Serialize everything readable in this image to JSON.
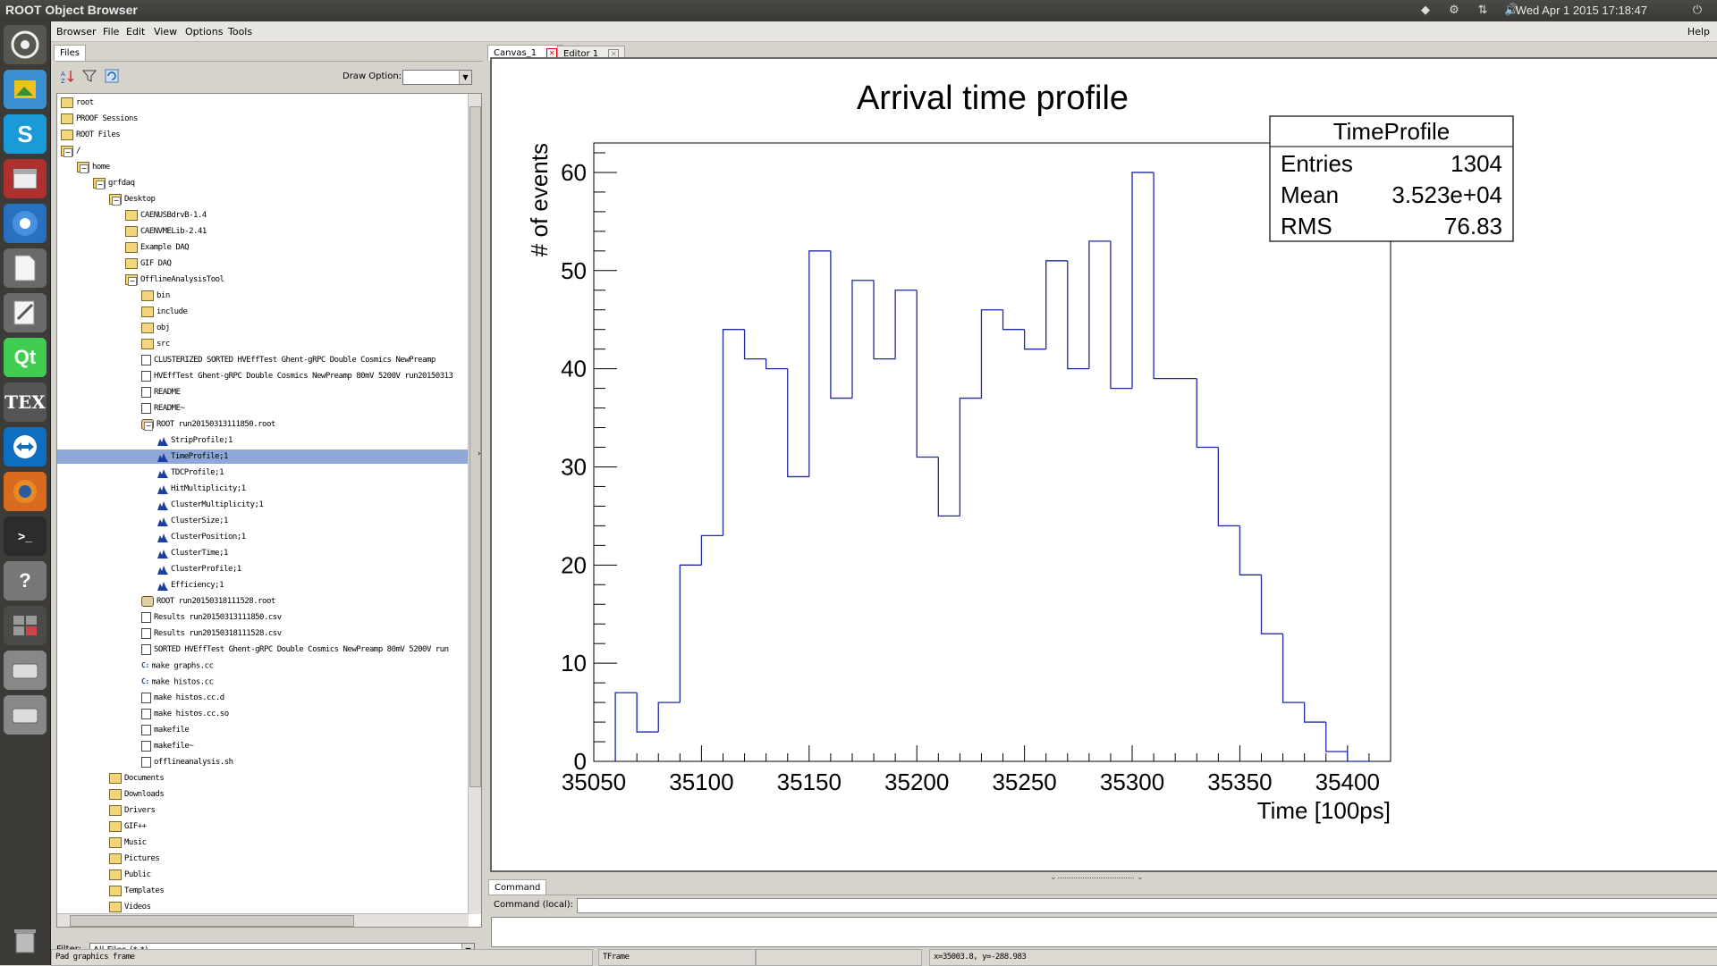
{
  "topbar": {
    "title": "ROOT Object Browser",
    "clock": "Wed Apr  1 2015 17:18:47"
  },
  "launcher": {
    "items": [
      "dash",
      "image-viewer",
      "skype",
      "archive",
      "chromium",
      "document",
      "text-editor",
      "qt-creator",
      "tex",
      "teamviewer",
      "firefox",
      "terminal",
      "help",
      "workspaces",
      "drive",
      "drive",
      "trash"
    ]
  },
  "menubar": {
    "items": [
      "Browser",
      "File",
      "Edit",
      "View",
      "Options",
      "Tools"
    ],
    "help": "Help"
  },
  "left": {
    "tab": "Files",
    "draw_option_label": "Draw Option:",
    "draw_option_value": "",
    "filter_label": "Filter:",
    "filter_value": "All Files (*.*)",
    "tree": [
      {
        "label": "root",
        "type": "folder",
        "depth": 0
      },
      {
        "label": "PROOF Sessions",
        "type": "folder",
        "depth": 0
      },
      {
        "label": "ROOT Files",
        "type": "folder",
        "depth": 0
      },
      {
        "label": "/",
        "type": "folder",
        "depth": 0
      },
      {
        "label": "home",
        "type": "folder",
        "depth": 1
      },
      {
        "label": "grfdaq",
        "type": "folder",
        "depth": 2
      },
      {
        "label": "Desktop",
        "type": "folder",
        "depth": 3
      },
      {
        "label": "CAENUSBdrvB-1.4",
        "type": "folder",
        "depth": 4
      },
      {
        "label": "CAENVMELib-2.41",
        "type": "folder",
        "depth": 4
      },
      {
        "label": "Example DAQ",
        "type": "folder",
        "depth": 4
      },
      {
        "label": "GIF DAQ",
        "type": "folder",
        "depth": 4
      },
      {
        "label": "OfflineAnalysisTool",
        "type": "folder",
        "depth": 4
      },
      {
        "label": "bin",
        "type": "folder",
        "depth": 5
      },
      {
        "label": "include",
        "type": "folder",
        "depth": 5
      },
      {
        "label": "obj",
        "type": "folder",
        "depth": 5
      },
      {
        "label": "src",
        "type": "folder",
        "depth": 5
      },
      {
        "label": "CLUSTERIZED SORTED HVEffTest Ghent-gRPC Double Cosmics NewPreamp",
        "type": "file",
        "depth": 5
      },
      {
        "label": "HVEffTest Ghent-gRPC Double Cosmics NewPreamp 80mV 5200V run20150313",
        "type": "file",
        "depth": 5
      },
      {
        "label": "README",
        "type": "file",
        "depth": 5
      },
      {
        "label": "README~",
        "type": "file",
        "depth": 5
      },
      {
        "label": "ROOT run20150313111850.root",
        "type": "root",
        "depth": 5
      },
      {
        "label": "StripProfile;1",
        "type": "hist",
        "depth": 6
      },
      {
        "label": "TimeProfile;1",
        "type": "hist",
        "depth": 6,
        "selected": true
      },
      {
        "label": "TDCProfile;1",
        "type": "hist",
        "depth": 6
      },
      {
        "label": "HitMultiplicity;1",
        "type": "hist",
        "depth": 6
      },
      {
        "label": "ClusterMultiplicity;1",
        "type": "hist",
        "depth": 6
      },
      {
        "label": "ClusterSize;1",
        "type": "hist",
        "depth": 6
      },
      {
        "label": "ClusterPosition;1",
        "type": "hist",
        "depth": 6
      },
      {
        "label": "ClusterTime;1",
        "type": "hist",
        "depth": 6
      },
      {
        "label": "ClusterProfile;1",
        "type": "hist",
        "depth": 6
      },
      {
        "label": "Efficiency;1",
        "type": "hist",
        "depth": 6
      },
      {
        "label": "ROOT run20150318111528.root",
        "type": "root",
        "depth": 5
      },
      {
        "label": "Results run20150313111850.csv",
        "type": "file",
        "depth": 5
      },
      {
        "label": "Results run20150318111528.csv",
        "type": "file",
        "depth": 5
      },
      {
        "label": "SORTED HVEffTest Ghent-gRPC Double Cosmics NewPreamp 80mV 5200V run",
        "type": "file",
        "depth": 5
      },
      {
        "label": "make graphs.cc",
        "type": "macro",
        "depth": 5
      },
      {
        "label": "make histos.cc",
        "type": "macro",
        "depth": 5
      },
      {
        "label": "make histos.cc.d",
        "type": "file",
        "depth": 5
      },
      {
        "label": "make histos.cc.so",
        "type": "file",
        "depth": 5
      },
      {
        "label": "makefile",
        "type": "file",
        "depth": 5
      },
      {
        "label": "makefile~",
        "type": "file",
        "depth": 5
      },
      {
        "label": "offlineanalysis.sh",
        "type": "file",
        "depth": 5
      },
      {
        "label": "Documents",
        "type": "folder",
        "depth": 3
      },
      {
        "label": "Downloads",
        "type": "folder",
        "depth": 3
      },
      {
        "label": "Drivers",
        "type": "folder",
        "depth": 3
      },
      {
        "label": "GIF++",
        "type": "folder",
        "depth": 3
      },
      {
        "label": "Music",
        "type": "folder",
        "depth": 3
      },
      {
        "label": "Pictures",
        "type": "folder",
        "depth": 3
      },
      {
        "label": "Public",
        "type": "folder",
        "depth": 3
      },
      {
        "label": "Templates",
        "type": "folder",
        "depth": 3
      },
      {
        "label": "Videos",
        "type": "folder",
        "depth": 3
      }
    ]
  },
  "tabs": {
    "canvas": "Canvas_1",
    "editor": "Editor 1",
    "command": "Command"
  },
  "command": {
    "label": "Command (local):",
    "value": ""
  },
  "status": {
    "f1": "Pad graphics frame",
    "f2": "TFrame",
    "f3": "",
    "f4": "x=35003.8, y=-288.983"
  },
  "stats": {
    "title": "TimeProfile",
    "rows": [
      [
        "Entries",
        "1304"
      ],
      [
        "Mean",
        "3.523e+04"
      ],
      [
        "RMS",
        "76.83"
      ]
    ]
  },
  "chart_data": {
    "type": "histogram",
    "title": "Arrival time profile",
    "xlabel": "Time [100ps]",
    "ylabel": "# of events",
    "xlim": [
      35050,
      35420
    ],
    "ylim": [
      0,
      63
    ],
    "bin_width": 10,
    "x_ticks": [
      35050,
      35100,
      35150,
      35200,
      35250,
      35300,
      35350,
      35400
    ],
    "y_ticks": [
      0,
      10,
      20,
      30,
      40,
      50,
      60
    ],
    "bin_edges": [
      35060,
      35070,
      35080,
      35090,
      35100,
      35110,
      35120,
      35130,
      35140,
      35150,
      35160,
      35170,
      35180,
      35190,
      35200,
      35210,
      35220,
      35230,
      35240,
      35250,
      35260,
      35270,
      35280,
      35290,
      35300,
      35310,
      35320,
      35330,
      35340,
      35350,
      35360,
      35370,
      35380,
      35390,
      35400,
      35410
    ],
    "values": [
      7,
      3,
      6,
      20,
      23,
      44,
      41,
      40,
      29,
      52,
      37,
      49,
      41,
      48,
      31,
      25,
      37,
      46,
      44,
      42,
      51,
      40,
      53,
      38,
      60,
      39,
      39,
      32,
      24,
      19,
      13,
      6,
      4,
      1,
      0
    ]
  }
}
